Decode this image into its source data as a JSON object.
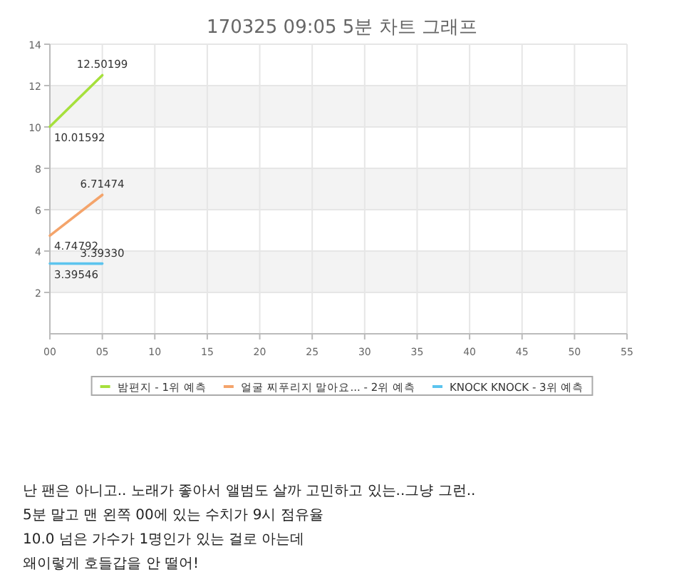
{
  "chart_data": {
    "type": "line",
    "title": "170325 09:05 5분 차트 그래프",
    "x": [
      0,
      5
    ],
    "series": [
      {
        "name": "밤편지 - 1위 예측",
        "color": "#a6e03c",
        "values": [
          10.01592,
          12.50199
        ],
        "value_labels": [
          "10.01592",
          "12.50199"
        ]
      },
      {
        "name": "얼굴 찌푸리지 말아요... - 2위 예측",
        "color": "#f4a46b",
        "values": [
          4.74792,
          6.71474
        ],
        "value_labels": [
          "4.74792",
          "6.71474"
        ]
      },
      {
        "name": "KNOCK KNOCK - 3위 예측",
        "color": "#5cc4ee",
        "values": [
          3.39546,
          3.3933
        ],
        "value_labels": [
          "3.39546",
          "3.39330"
        ]
      }
    ],
    "xlim": [
      0,
      55
    ],
    "xticks": [
      {
        "value": 0,
        "label": "00"
      },
      {
        "value": 5,
        "label": "05"
      },
      10,
      15,
      20,
      25,
      30,
      35,
      40,
      45,
      50,
      55
    ],
    "ylim": [
      0,
      14
    ],
    "yticks": [
      2,
      4,
      6,
      8,
      10,
      12,
      14
    ],
    "bands": [
      {
        "axis": "y",
        "from": 2,
        "to": 4,
        "color": "#f3f3f3"
      },
      {
        "axis": "y",
        "from": 6,
        "to": 8,
        "color": "#f3f3f3"
      },
      {
        "axis": "y",
        "from": 10,
        "to": 12,
        "color": "#f3f3f3"
      }
    ],
    "grid": true,
    "legend": "bottom",
    "marker": "none",
    "line_style": "solid",
    "annotations": [
      "난 팬은 아니고.. 노래가 좋아서 앨범도 살까 고민하고 있는..그냥 그런..",
      "5분 말고 맨 왼쪽 00에 있는 수치가 9시 점유율",
      "10.0 넘은 가수가 1명인가 있는 걸로 아는데",
      "왜이렇게 호들갑을 안 떨어!"
    ]
  }
}
